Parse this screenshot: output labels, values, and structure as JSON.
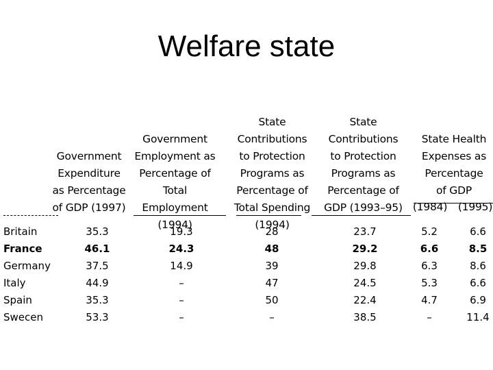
{
  "slide": {
    "title": "Welfare state"
  },
  "table": {
    "headers": {
      "gov_expenditure": "Government\nExpenditure\nas Percentage\nof GDP (1997)",
      "gov_employment": "Government\nEmployment as\nPercentage of\nTotal Employment\n(1994)",
      "state_contrib_spending": "State Contributions\nto Protection\nPrograms as\nPercentage of\nTotal Spending\n(1994)",
      "state_contrib_gdp": "State\nContributions\nto Protection\nPrograms as\nPercentage of\nGDP (1993–95)",
      "health": "State Health\nExpenses as\nPercentage\nof GDP",
      "health_1984": "(1984)",
      "health_1995": "(1995)"
    },
    "rows": [
      {
        "country": "Britain",
        "bold": false,
        "values": [
          "35.3",
          "19.3",
          "28",
          "23.7",
          "5.2",
          "6.6"
        ]
      },
      {
        "country": "France",
        "bold": true,
        "values": [
          "46.1",
          "24.3",
          "48",
          "29.2",
          "6.6",
          "8.5"
        ]
      },
      {
        "country": "Germany",
        "bold": false,
        "values": [
          "37.5",
          "14.9",
          "39",
          "29.8",
          "6.3",
          "8.6"
        ]
      },
      {
        "country": "Italy",
        "bold": false,
        "values": [
          "44.9",
          "–",
          "47",
          "24.5",
          "5.3",
          "6.6"
        ]
      },
      {
        "country": "Spain",
        "bold": false,
        "values": [
          "35.3",
          "–",
          "50",
          "22.4",
          "4.7",
          "6.9"
        ]
      },
      {
        "country": "Swecen",
        "bold": false,
        "values": [
          "53.3",
          "–",
          "–",
          "38.5",
          "–",
          "11.4"
        ]
      }
    ]
  }
}
